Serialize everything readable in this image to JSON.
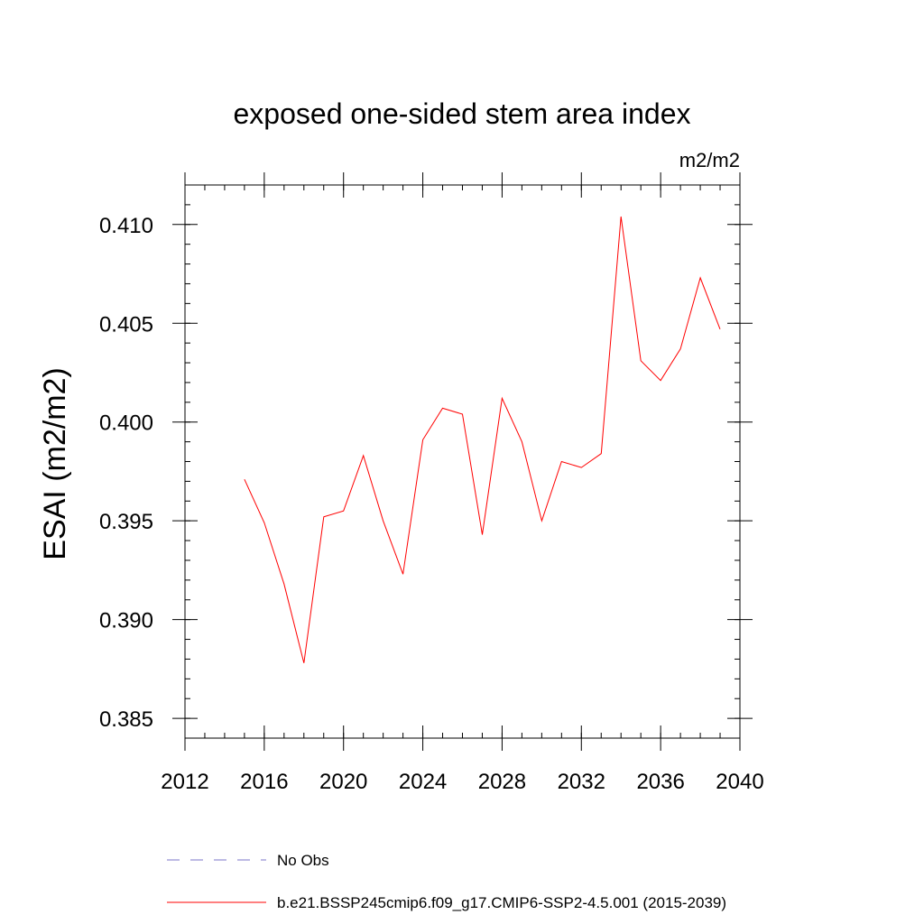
{
  "chart_data": {
    "type": "line",
    "title": "exposed one-sided stem area index",
    "units": "m2/m2",
    "ylabel": "ESAI  (m2/m2)",
    "xlabel": "",
    "xlim": [
      2012,
      2040
    ],
    "ylim": [
      0.384,
      0.412
    ],
    "xticks": [
      2012,
      2016,
      2020,
      2024,
      2028,
      2032,
      2036,
      2040
    ],
    "xtick_labels": [
      "2012",
      "2016",
      "2020",
      "2024",
      "2028",
      "2032",
      "2036",
      "2040"
    ],
    "yticks": [
      0.385,
      0.39,
      0.395,
      0.4,
      0.405,
      0.41
    ],
    "ytick_labels": [
      "0.385",
      "0.390",
      "0.395",
      "0.400",
      "0.405",
      "0.410"
    ],
    "grid": false,
    "legend_position": "bottom",
    "series": [
      {
        "name": "b.e21.BSSP245cmip6.f09_g17.CMIP6-SSP2-4.5.001 (2015-2039)",
        "color": "#ff0000",
        "style": "solid",
        "x": [
          2015,
          2016,
          2017,
          2018,
          2019,
          2020,
          2021,
          2022,
          2023,
          2024,
          2025,
          2026,
          2027,
          2028,
          2029,
          2030,
          2031,
          2032,
          2033,
          2034,
          2035,
          2036,
          2037,
          2038,
          2039
        ],
        "y": [
          0.3971,
          0.3949,
          0.3918,
          0.3878,
          0.3952,
          0.3955,
          0.3983,
          0.395,
          0.3923,
          0.3991,
          0.4007,
          0.4004,
          0.3943,
          0.4012,
          0.399,
          0.395,
          0.398,
          0.3977,
          0.3984,
          0.4104,
          0.4031,
          0.4021,
          0.4037,
          0.4073,
          0.4047
        ]
      },
      {
        "name": "No Obs",
        "color": "#7b76c8",
        "style": "dashed",
        "x": [],
        "y": []
      }
    ]
  }
}
